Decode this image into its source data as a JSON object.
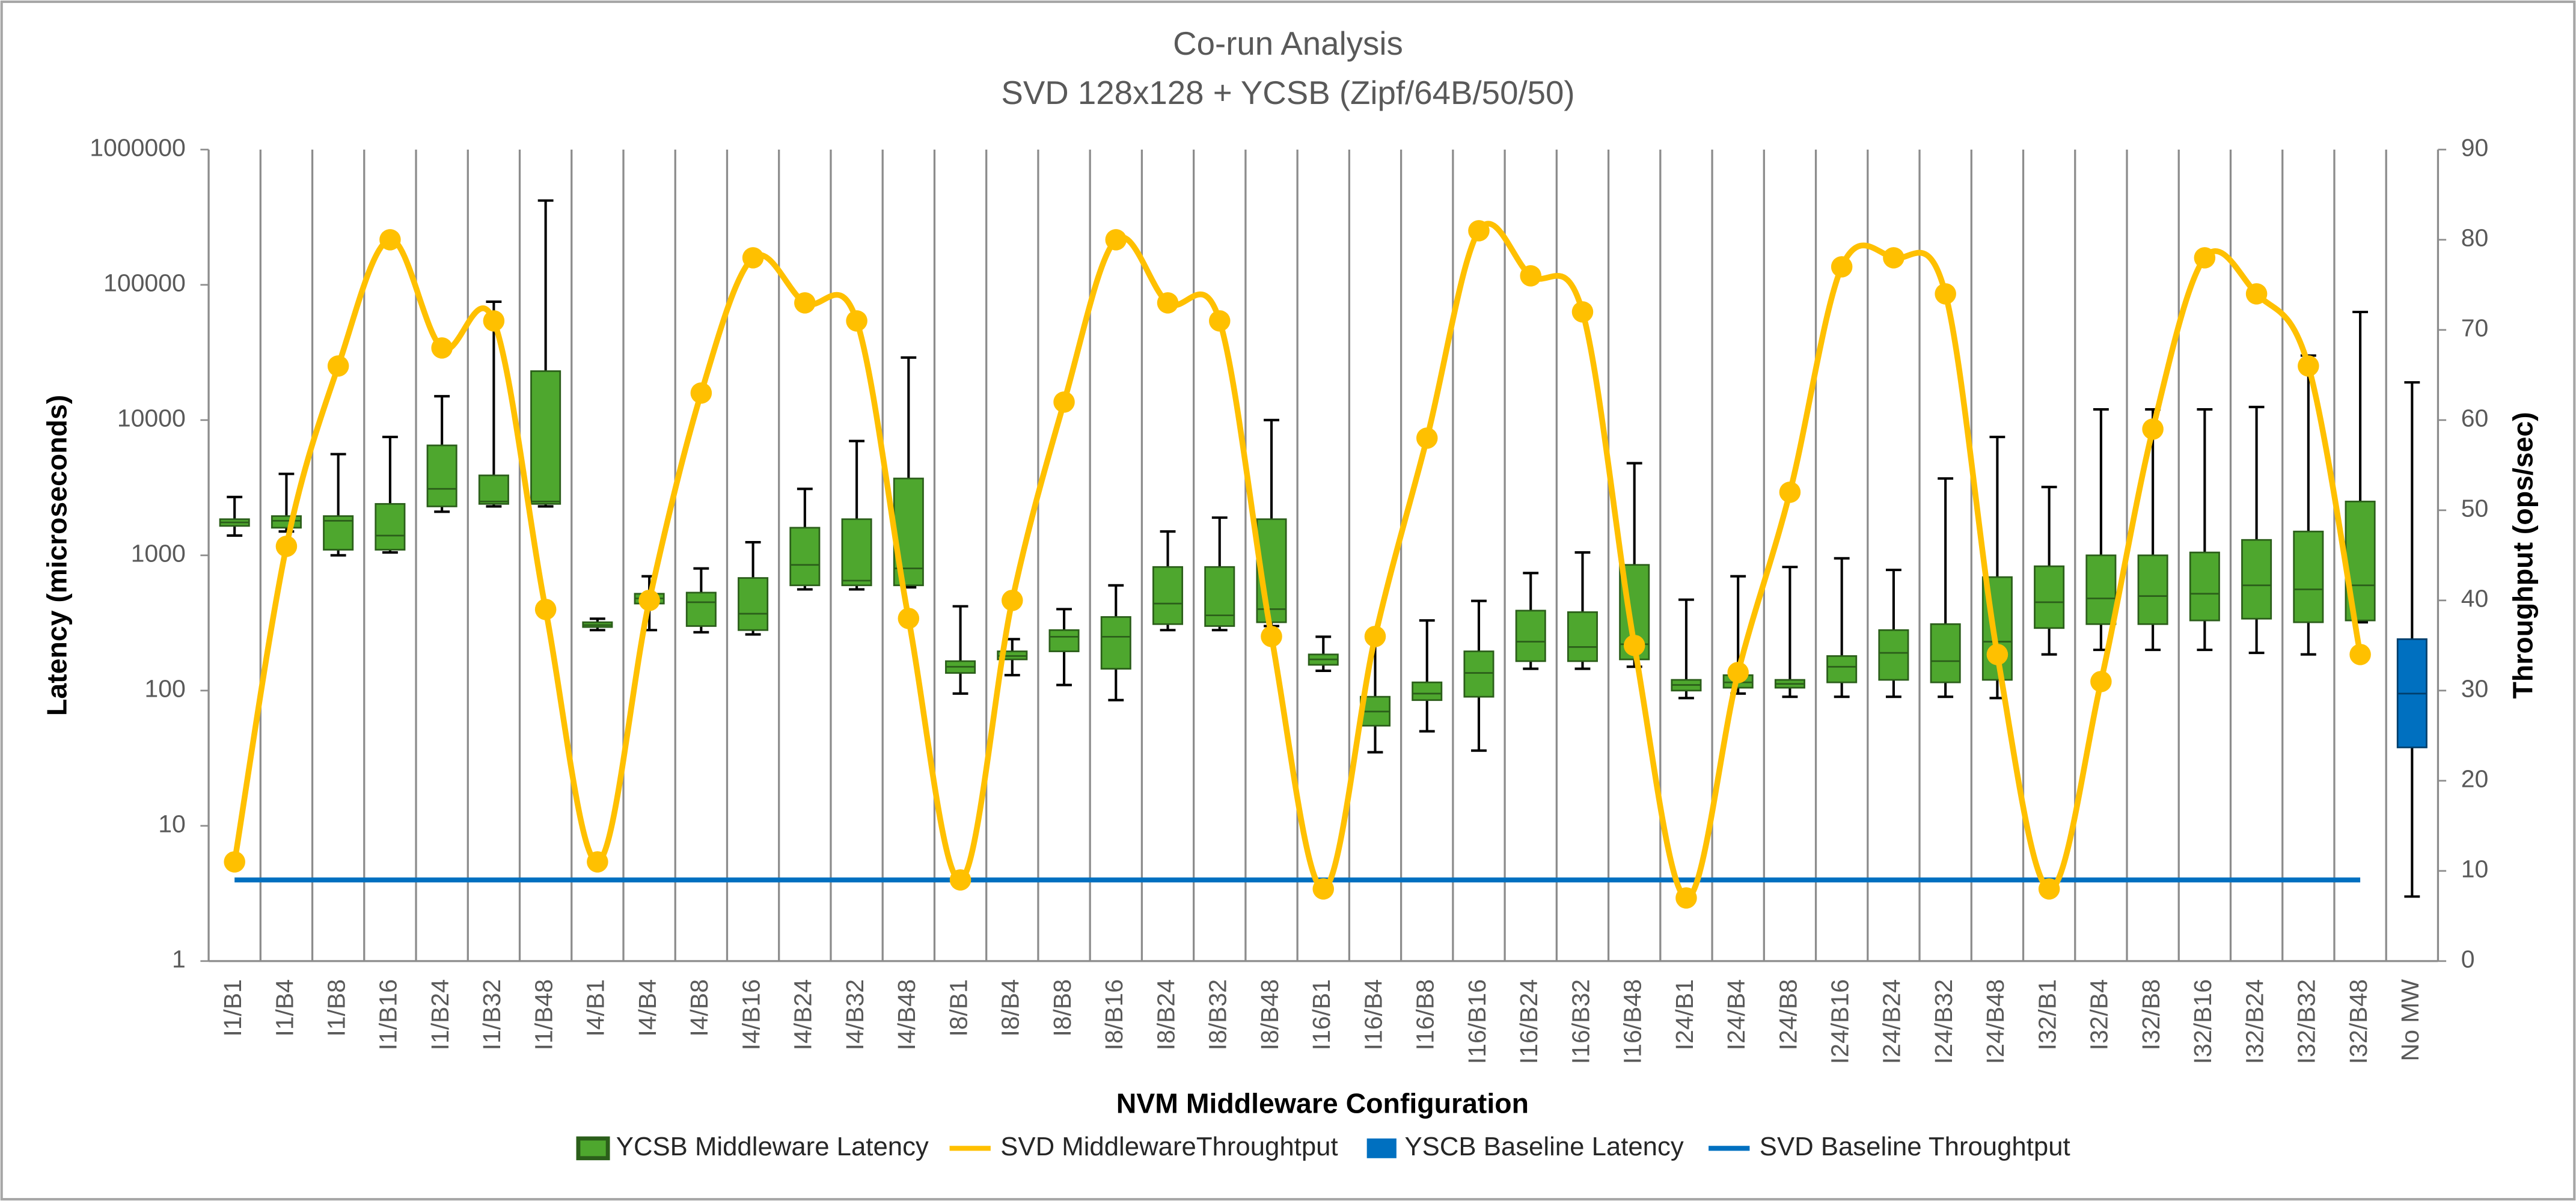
{
  "chart_data": {
    "type": "box",
    "title": "Co-run Analysis",
    "subtitle": "SVD 128x128 + YCSB (Zipf/64B/50/50)",
    "x_label": "NVM Middleware Configuration",
    "y_label": "Latency (microseconds)",
    "y2_label": "Throughput (ops/sec)",
    "categories": [
      "I1/B1",
      "I1/B4",
      "I1/B8",
      "I1/B16",
      "I1/B24",
      "I1/B32",
      "I1/B48",
      "I4/B1",
      "I4/B4",
      "I4/B8",
      "I4/B16",
      "I4/B24",
      "I4/B32",
      "I4/B48",
      "I8/B1",
      "I8/B4",
      "I8/B8",
      "I8/B16",
      "I8/B24",
      "I8/B32",
      "I8/B48",
      "I16/B1",
      "I16/B4",
      "I16/B8",
      "I16/B16",
      "I16/B24",
      "I16/B32",
      "I16/B48",
      "I24/B1",
      "I24/B4",
      "I24/B8",
      "I24/B16",
      "I24/B24",
      "I24/B32",
      "I24/B48",
      "I32/B1",
      "I32/B4",
      "I32/B8",
      "I32/B16",
      "I32/B24",
      "I32/B32",
      "I32/B48",
      "No MW"
    ],
    "ylog": true,
    "ylim": [
      1,
      1000000
    ],
    "yticks": [
      1,
      10,
      100,
      1000,
      10000,
      100000,
      1000000
    ],
    "y2lim": [
      0,
      90
    ],
    "y2ticks": [
      0,
      10,
      20,
      30,
      40,
      50,
      60,
      70,
      80,
      90
    ],
    "legend": "bottom",
    "series": [
      {
        "name": "YCSB Middleware Latency",
        "type": "box",
        "color": "#4ea72e",
        "values": [
          {
            "min": 1400,
            "q1": 1650,
            "median": 1750,
            "q3": 1850,
            "max": 2700
          },
          {
            "min": 1500,
            "q1": 1600,
            "median": 1800,
            "q3": 1950,
            "max": 4000
          },
          {
            "min": 1000,
            "q1": 1100,
            "median": 1800,
            "q3": 1950,
            "max": 5600
          },
          {
            "min": 1050,
            "q1": 1100,
            "median": 1400,
            "q3": 2400,
            "max": 7500
          },
          {
            "min": 2100,
            "q1": 2300,
            "median": 3100,
            "q3": 6500,
            "max": 15000
          },
          {
            "min": 2300,
            "q1": 2400,
            "median": 2500,
            "q3": 3900,
            "max": 75000
          },
          {
            "min": 2300,
            "q1": 2400,
            "median": 2500,
            "q3": 23000,
            "max": 420000
          },
          {
            "min": 280,
            "q1": 295,
            "median": 305,
            "q3": 320,
            "max": 340
          },
          {
            "min": 280,
            "q1": 440,
            "median": 480,
            "q3": 520,
            "max": 700
          },
          {
            "min": 270,
            "q1": 300,
            "median": 450,
            "q3": 530,
            "max": 800
          },
          {
            "min": 260,
            "q1": 280,
            "median": 370,
            "q3": 680,
            "max": 1250
          },
          {
            "min": 560,
            "q1": 600,
            "median": 850,
            "q3": 1600,
            "max": 3100
          },
          {
            "min": 560,
            "q1": 600,
            "median": 650,
            "q3": 1850,
            "max": 7000
          },
          {
            "min": 580,
            "q1": 600,
            "median": 800,
            "q3": 3700,
            "max": 29000
          },
          {
            "min": 95,
            "q1": 135,
            "median": 150,
            "q3": 165,
            "max": 420
          },
          {
            "min": 130,
            "q1": 170,
            "median": 180,
            "q3": 195,
            "max": 240
          },
          {
            "min": 110,
            "q1": 195,
            "median": 250,
            "q3": 280,
            "max": 400
          },
          {
            "min": 85,
            "q1": 145,
            "median": 250,
            "q3": 350,
            "max": 600
          },
          {
            "min": 280,
            "q1": 310,
            "median": 440,
            "q3": 820,
            "max": 1500
          },
          {
            "min": 280,
            "q1": 300,
            "median": 360,
            "q3": 820,
            "max": 1900
          },
          {
            "min": 300,
            "q1": 320,
            "median": 400,
            "q3": 1850,
            "max": 10000
          },
          {
            "min": 140,
            "q1": 155,
            "median": 170,
            "q3": 185,
            "max": 250
          },
          {
            "min": 35,
            "q1": 55,
            "median": 70,
            "q3": 90,
            "max": 250
          },
          {
            "min": 50,
            "q1": 85,
            "median": 95,
            "q3": 115,
            "max": 330
          },
          {
            "min": 36,
            "q1": 90,
            "median": 135,
            "q3": 195,
            "max": 460
          },
          {
            "min": 145,
            "q1": 165,
            "median": 230,
            "q3": 390,
            "max": 740
          },
          {
            "min": 145,
            "q1": 165,
            "median": 210,
            "q3": 380,
            "max": 1050
          },
          {
            "min": 150,
            "q1": 170,
            "median": 220,
            "q3": 850,
            "max": 4800
          },
          {
            "min": 88,
            "q1": 100,
            "median": 110,
            "q3": 120,
            "max": 470
          },
          {
            "min": 95,
            "q1": 105,
            "median": 115,
            "q3": 130,
            "max": 700
          },
          {
            "min": 90,
            "q1": 105,
            "median": 112,
            "q3": 120,
            "max": 820
          },
          {
            "min": 90,
            "q1": 115,
            "median": 150,
            "q3": 180,
            "max": 950
          },
          {
            "min": 90,
            "q1": 120,
            "median": 190,
            "q3": 280,
            "max": 780
          },
          {
            "min": 90,
            "q1": 115,
            "median": 165,
            "q3": 310,
            "max": 3700
          },
          {
            "min": 88,
            "q1": 120,
            "median": 230,
            "q3": 690,
            "max": 7500
          },
          {
            "min": 185,
            "q1": 290,
            "median": 450,
            "q3": 830,
            "max": 3200
          },
          {
            "min": 200,
            "q1": 310,
            "median": 480,
            "q3": 1000,
            "max": 12000
          },
          {
            "min": 200,
            "q1": 310,
            "median": 500,
            "q3": 1000,
            "max": 12000
          },
          {
            "min": 200,
            "q1": 330,
            "median": 520,
            "q3": 1050,
            "max": 12000
          },
          {
            "min": 190,
            "q1": 340,
            "median": 600,
            "q3": 1300,
            "max": 12500
          },
          {
            "min": 185,
            "q1": 320,
            "median": 560,
            "q3": 1500,
            "max": 30000
          },
          {
            "min": 320,
            "q1": 330,
            "median": 600,
            "q3": 2500,
            "max": 63000
          },
          null
        ]
      },
      {
        "name": "SVD MiddlewareThroughtput",
        "type": "line",
        "axis": "y2",
        "color": "#ffc000",
        "smooth": true,
        "marker": true,
        "values": [
          11,
          46,
          66,
          80,
          68,
          71,
          39,
          11,
          40,
          63,
          78,
          73,
          71,
          38,
          9,
          40,
          62,
          80,
          73,
          71,
          36,
          8,
          36,
          58,
          81,
          76,
          72,
          35,
          7,
          32,
          52,
          77,
          78,
          74,
          34,
          8,
          31,
          59,
          78,
          74,
          66,
          34,
          null
        ]
      },
      {
        "name": "YSCB Baseline Latency",
        "type": "box",
        "color": "#0070c0",
        "values": [
          null,
          null,
          null,
          null,
          null,
          null,
          null,
          null,
          null,
          null,
          null,
          null,
          null,
          null,
          null,
          null,
          null,
          null,
          null,
          null,
          null,
          null,
          null,
          null,
          null,
          null,
          null,
          null,
          null,
          null,
          null,
          null,
          null,
          null,
          null,
          null,
          null,
          null,
          null,
          null,
          null,
          null,
          {
            "min": 3,
            "q1": 38,
            "median": 95,
            "q3": 240,
            "max": 19000
          }
        ]
      },
      {
        "name": "SVD Baseline Throughtput",
        "type": "line",
        "axis": "y2",
        "color": "#0070c0",
        "smooth": false,
        "marker": false,
        "values": [
          9,
          9,
          9,
          9,
          9,
          9,
          9,
          9,
          9,
          9,
          9,
          9,
          9,
          9,
          9,
          9,
          9,
          9,
          9,
          9,
          9,
          9,
          9,
          9,
          9,
          9,
          9,
          9,
          9,
          9,
          9,
          9,
          9,
          9,
          9,
          9,
          9,
          9,
          9,
          9,
          9,
          9,
          null
        ]
      }
    ]
  }
}
